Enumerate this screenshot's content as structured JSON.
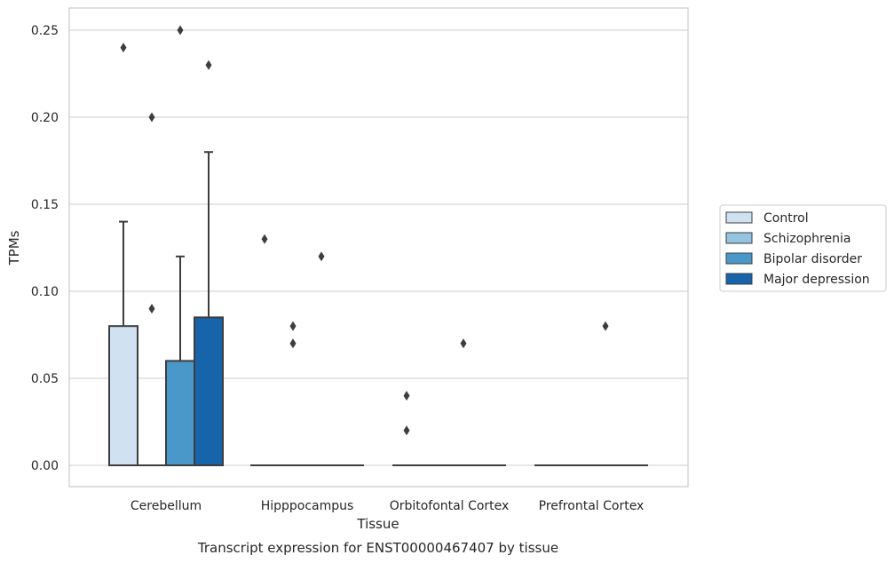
{
  "chart_data": {
    "type": "box",
    "title": "",
    "caption": "Transcript expression for ENST00000467407 by tissue",
    "xlabel": "Tissue",
    "ylabel": "TPMs",
    "ylim": [
      -0.012,
      0.263
    ],
    "yticks": [
      "0.00",
      "0.05",
      "0.10",
      "0.15",
      "0.20",
      "0.25"
    ],
    "ytick_values": [
      0,
      0.05,
      0.1,
      0.15,
      0.2,
      0.25
    ],
    "grid": true,
    "legend_position": "right",
    "categories": [
      "Cerebellum",
      "Hipppocampus",
      "Orbitofontal Cortex",
      "Prefrontal Cortex"
    ],
    "series": [
      {
        "name": "Control",
        "color": "#d0e1f2",
        "boxes": [
          {
            "q1": 0,
            "median": 0,
            "q3": 0.08,
            "whisker_low": 0,
            "whisker_high": 0.14,
            "outliers": [
              0.24
            ]
          },
          {
            "q1": 0,
            "median": 0,
            "q3": 0,
            "whisker_low": 0,
            "whisker_high": 0,
            "outliers": [
              0.13
            ]
          },
          {
            "q1": 0,
            "median": 0,
            "q3": 0,
            "whisker_low": 0,
            "whisker_high": 0,
            "outliers": [
              0.04,
              0.02
            ]
          },
          {
            "q1": 0,
            "median": 0,
            "q3": 0,
            "whisker_low": 0,
            "whisker_high": 0,
            "outliers": []
          }
        ]
      },
      {
        "name": "Schizophrenia",
        "color": "#94c4df",
        "boxes": [
          {
            "q1": 0,
            "median": 0,
            "q3": 0,
            "whisker_low": 0,
            "whisker_high": 0,
            "outliers": [
              0.2,
              0.09
            ]
          },
          {
            "q1": 0,
            "median": 0,
            "q3": 0,
            "whisker_low": 0,
            "whisker_high": 0,
            "outliers": [
              0.08,
              0.07
            ]
          },
          {
            "q1": 0,
            "median": 0,
            "q3": 0,
            "whisker_low": 0,
            "whisker_high": 0,
            "outliers": []
          },
          {
            "q1": 0,
            "median": 0,
            "q3": 0,
            "whisker_low": 0,
            "whisker_high": 0,
            "outliers": []
          }
        ]
      },
      {
        "name": "Bipolar disorder",
        "color": "#4a98c9",
        "boxes": [
          {
            "q1": 0,
            "median": 0,
            "q3": 0.06,
            "whisker_low": 0,
            "whisker_high": 0.12,
            "outliers": [
              0.25
            ]
          },
          {
            "q1": 0,
            "median": 0,
            "q3": 0,
            "whisker_low": 0,
            "whisker_high": 0,
            "outliers": [
              0.12
            ]
          },
          {
            "q1": 0,
            "median": 0,
            "q3": 0,
            "whisker_low": 0,
            "whisker_high": 0,
            "outliers": [
              0.07
            ]
          },
          {
            "q1": 0,
            "median": 0,
            "q3": 0,
            "whisker_low": 0,
            "whisker_high": 0,
            "outliers": [
              0.08
            ]
          }
        ]
      },
      {
        "name": "Major depression",
        "color": "#1764ab",
        "boxes": [
          {
            "q1": 0,
            "median": 0,
            "q3": 0.085,
            "whisker_low": 0,
            "whisker_high": 0.18,
            "outliers": [
              0.23
            ]
          },
          {
            "q1": 0,
            "median": 0,
            "q3": 0,
            "whisker_low": 0,
            "whisker_high": 0,
            "outliers": []
          },
          {
            "q1": 0,
            "median": 0,
            "q3": 0,
            "whisker_low": 0,
            "whisker_high": 0,
            "outliers": []
          },
          {
            "q1": 0,
            "median": 0,
            "q3": 0,
            "whisker_low": 0,
            "whisker_high": 0,
            "outliers": []
          }
        ]
      }
    ]
  }
}
